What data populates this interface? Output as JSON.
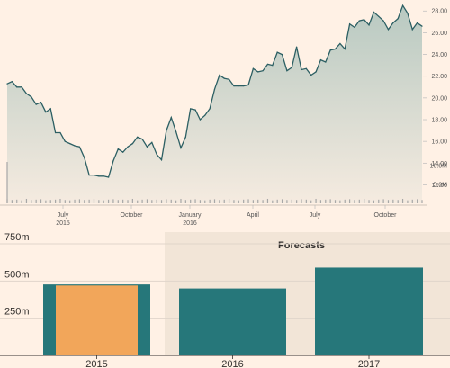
{
  "chart_data": [
    {
      "type": "area",
      "x_tick_labels": [
        {
          "label": "July",
          "sub": "2015"
        },
        {
          "label": "October",
          "sub": ""
        },
        {
          "label": "January",
          "sub": "2016"
        },
        {
          "label": "April",
          "sub": ""
        },
        {
          "label": "July",
          "sub": ""
        },
        {
          "label": "October",
          "sub": ""
        }
      ],
      "y_ticks": [
        "28.00",
        "26.00",
        "24.00",
        "22.00",
        "20.00",
        "18.00",
        "16.00",
        "14.00",
        "12.00"
      ],
      "ylim": [
        10.3,
        28.6
      ],
      "volume_ticks": [
        "10.0M",
        "5.0M"
      ],
      "volume_lim": [
        0,
        11
      ],
      "series": [
        {
          "values": [
            21.3,
            21.5,
            21.0,
            21.0,
            20.4,
            20.1,
            19.4,
            19.6,
            18.7,
            19.0,
            16.8,
            16.8,
            16.0,
            15.8,
            15.6,
            15.5,
            14.5,
            12.9,
            12.9,
            12.8,
            12.8,
            12.7,
            14.2,
            15.3,
            15.0,
            15.5,
            15.8,
            16.4,
            16.2,
            15.5,
            15.9,
            14.8,
            14.3,
            17.0,
            18.2,
            16.9,
            15.4,
            16.4,
            19.0,
            18.9,
            18.0,
            18.4,
            19.0,
            20.8,
            22.1,
            21.8,
            21.7,
            21.1,
            21.1,
            21.1,
            21.2,
            22.7,
            22.4,
            22.5,
            23.1,
            23.0,
            24.2,
            24.0,
            22.5,
            22.8,
            24.7,
            22.6,
            22.7,
            22.1,
            22.4,
            23.5,
            23.3,
            24.4,
            24.5,
            25.0,
            24.5,
            26.8,
            26.5,
            27.1,
            27.2,
            26.7,
            27.9,
            27.5,
            27.1,
            26.3,
            26.9,
            27.3,
            28.5,
            27.8,
            26.3,
            26.9,
            26.6
          ]
        }
      ],
      "volume": [
        1.1,
        0.9,
        1.0,
        0.8,
        1.2,
        0.9,
        1.0,
        1.1,
        0.8,
        0.9,
        1.0,
        1.2,
        0.9,
        0.8,
        1.0,
        1.1,
        0.9,
        1.0,
        1.2,
        0.9,
        0.8,
        1.0,
        1.1,
        0.9,
        1.0,
        0.9,
        1.2,
        0.8,
        1.0,
        1.1,
        0.9,
        1.0,
        0.9,
        1.1,
        1.0,
        0.8,
        1.2,
        0.9,
        1.0,
        1.1,
        0.9,
        0.8,
        1.0,
        1.1,
        0.9,
        1.0,
        1.2,
        0.9,
        0.8,
        1.0,
        1.1,
        0.9,
        1.0,
        0.9,
        1.2,
        0.8,
        1.0,
        1.1,
        0.9,
        1.0,
        0.9,
        1.1,
        1.0,
        0.8,
        1.2,
        0.9,
        1.0,
        1.1,
        0.9,
        0.8,
        1.0,
        1.1,
        0.9,
        1.0,
        1.2,
        0.9,
        0.8,
        1.0,
        1.1,
        0.9,
        1.0,
        0.9,
        1.2,
        0.8,
        1.0,
        1.1,
        0.9
      ],
      "volume_spike": {
        "value": 11,
        "index": 0
      },
      "colors": {
        "line": "#2c5f63",
        "fill_top": "#b8c9c1",
        "fill_bottom": "#f5ebe0",
        "volume": "#a7a7a7"
      }
    },
    {
      "type": "bar",
      "categories": [
        "2015",
        "2016",
        "2017"
      ],
      "y_ticks": [
        "750m",
        "500m",
        "250m"
      ],
      "ylim": [
        0,
        750
      ],
      "forecast_label": "Forecasts",
      "series": [
        {
          "values": [
            477,
            450,
            590
          ],
          "color": "#26777a"
        },
        {
          "values": [
            470,
            null,
            null
          ],
          "color": "#f2a65a"
        }
      ],
      "colors": {
        "forecast_bg": "#f2e5d7",
        "grid": "#e0d5ca"
      }
    }
  ]
}
